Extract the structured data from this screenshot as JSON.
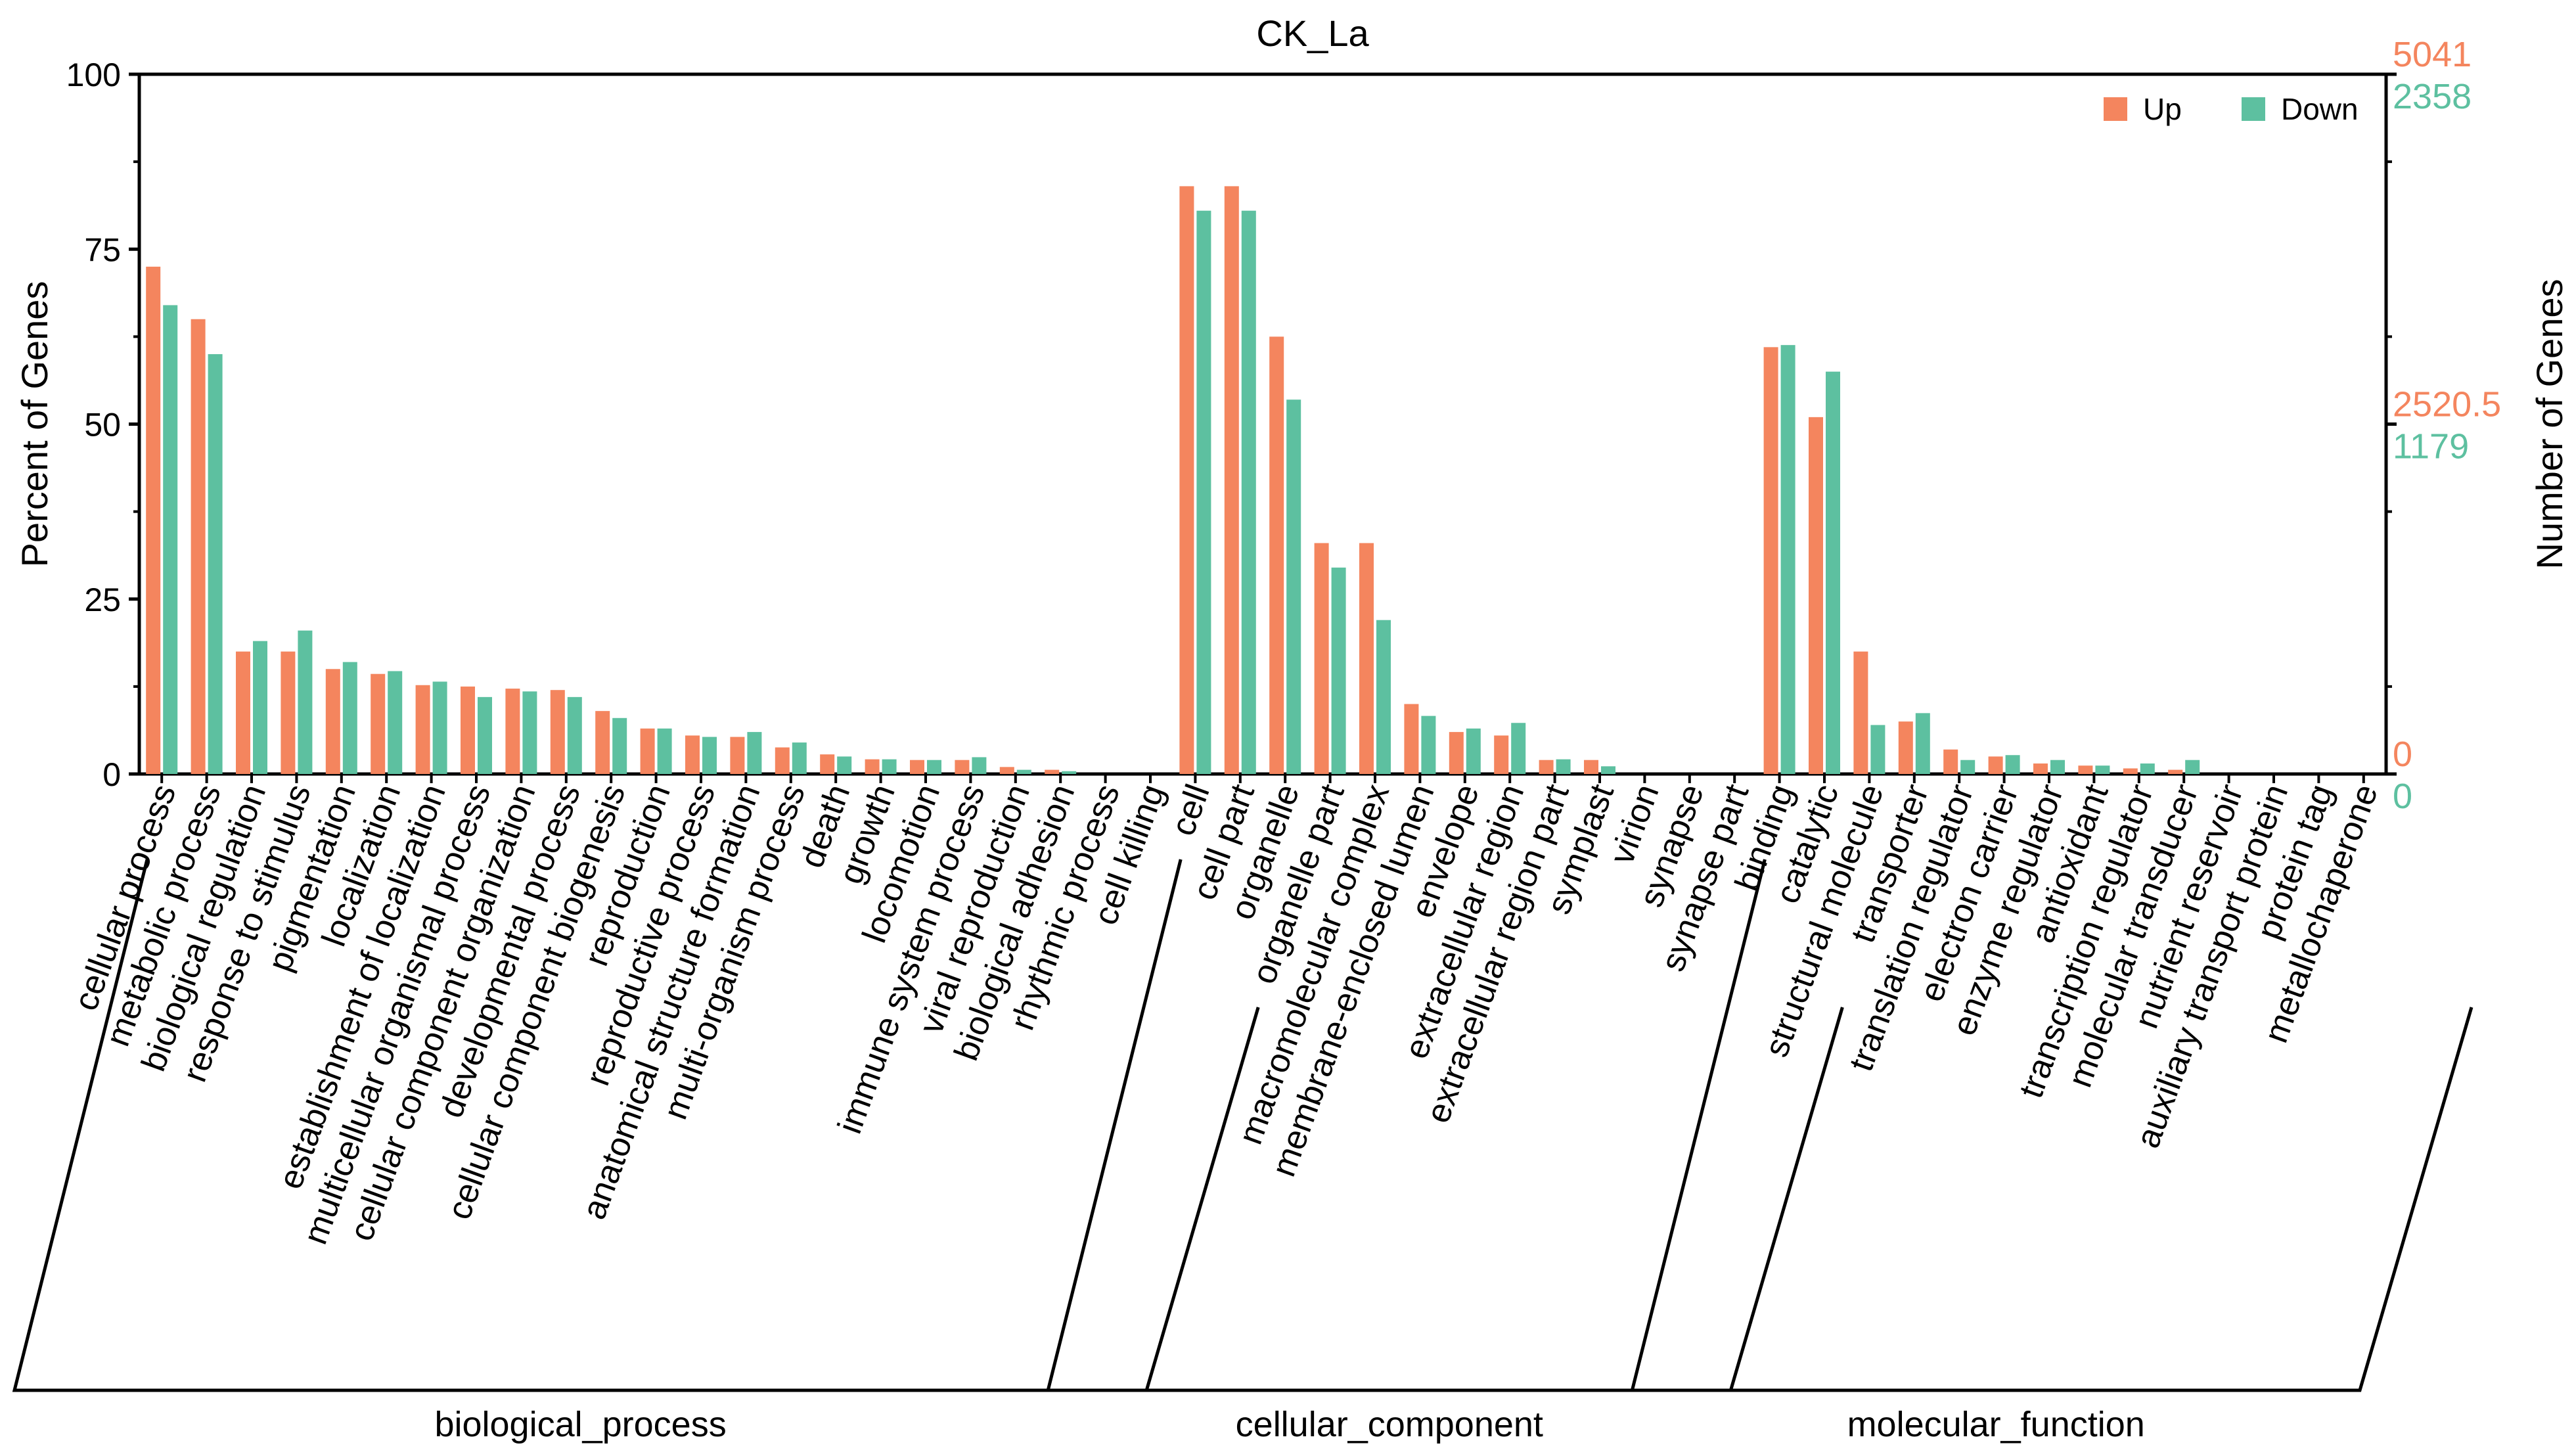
{
  "chart_data": {
    "type": "bar",
    "title": "CK_La",
    "ylabel": "Percent of Genes",
    "y2label": "Number of Genes",
    "ylim": [
      0,
      100
    ],
    "yticks": [
      "0",
      "25",
      "50",
      "75",
      "100"
    ],
    "right_axis": {
      "up": [
        "0",
        "2520.5",
        "5041"
      ],
      "down": [
        "0",
        "1179",
        "2358"
      ]
    },
    "legend": {
      "position": "top-right",
      "up": "Up",
      "down": "Down"
    },
    "colors": {
      "up": "#F4855E",
      "down": "#5DC0A0"
    },
    "categories": [
      "cellular process",
      "metabolic process",
      "biological regulation",
      "response to stimulus",
      "pigmentation",
      "localization",
      "establishment of localization",
      "multicellular organismal process",
      "cellular component organization",
      "developmental process",
      "cellular component biogenesis",
      "reproduction",
      "reproductive process",
      "anatomical structure formation",
      "multi-organism process",
      "death",
      "growth",
      "locomotion",
      "immune system process",
      "viral reproduction",
      "biological adhesion",
      "rhythmic process",
      "cell killing",
      "cell",
      "cell part",
      "organelle",
      "organelle part",
      "macromolecular complex",
      "membrane-enclosed lumen",
      "envelope",
      "extracellular region",
      "extracellular region part",
      "symplast",
      "virion",
      "synapse",
      "synapse part",
      "binding",
      "catalytic",
      "structural molecule",
      "transporter",
      "translation regulator",
      "electron carrier",
      "enzyme regulator",
      "antioxidant",
      "transcription regulator",
      "molecular transducer",
      "nutrient reservoir",
      "auxiliary transport protein",
      "protein tag",
      "metallochaperone"
    ],
    "series": [
      {
        "name": "Up",
        "values": [
          72.5,
          65,
          17.5,
          17.5,
          15,
          14.3,
          12.7,
          12.5,
          12.2,
          12,
          9,
          6.5,
          5.5,
          5.3,
          3.8,
          2.8,
          2.1,
          2,
          2,
          1,
          0.6,
          0,
          0,
          84,
          84,
          62.5,
          33,
          33,
          10,
          6,
          5.5,
          2,
          2,
          0,
          0,
          0,
          61,
          51,
          17.5,
          7.5,
          3.5,
          2.5,
          1.5,
          1.2,
          0.8,
          0.6,
          0,
          0,
          0,
          0
        ]
      },
      {
        "name": "Down",
        "values": [
          67,
          60,
          19,
          20.5,
          16,
          14.7,
          13.2,
          11,
          11.8,
          11,
          8,
          6.5,
          5.3,
          6,
          4.5,
          2.5,
          2.1,
          2,
          2.4,
          0.6,
          0.4,
          0,
          0,
          80.5,
          80.5,
          53.5,
          29.5,
          22,
          8.3,
          6.5,
          7.3,
          2.1,
          1.1,
          0,
          0,
          0,
          61.3,
          57.5,
          7,
          8.7,
          2,
          2.7,
          2,
          1.2,
          1.5,
          2,
          0,
          0,
          0,
          0
        ]
      }
    ],
    "groups": [
      {
        "label": "biological_process",
        "range": [
          0,
          22
        ]
      },
      {
        "label": "cellular_component",
        "range": [
          23,
          35
        ]
      },
      {
        "label": "molecular_function",
        "range": [
          36,
          49
        ]
      }
    ]
  }
}
